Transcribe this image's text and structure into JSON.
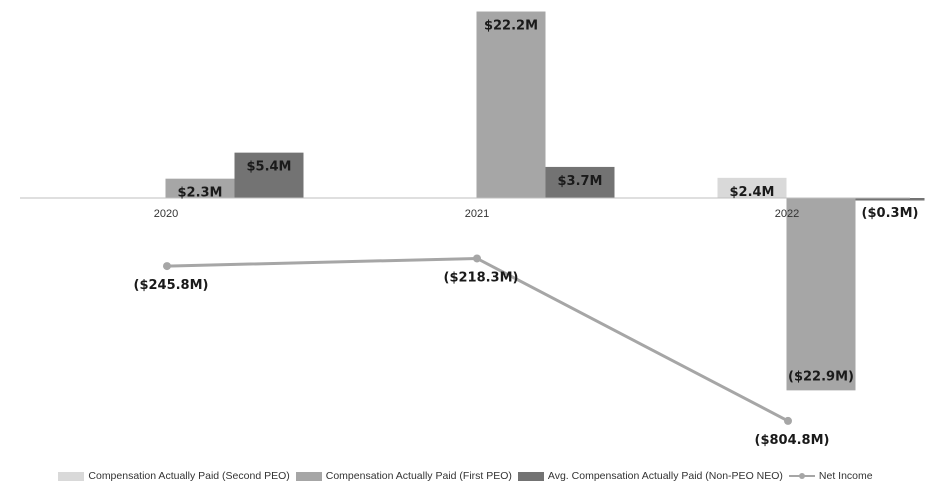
{
  "chart_data": {
    "type": "bar",
    "categories": [
      "2020",
      "2021",
      "2022"
    ],
    "series": [
      {
        "name": "Compensation Actually Paid (Second PEO)",
        "color": "#d9d9d9",
        "values": [
          null,
          null,
          2.4
        ],
        "labels": [
          "",
          "",
          "$2.4M"
        ]
      },
      {
        "name": "Compensation Actually Paid (First PEO)",
        "color": "#a6a6a6",
        "values": [
          2.3,
          22.2,
          -22.9
        ],
        "labels": [
          "$2.3M",
          "$22.2M",
          "($22.9M)"
        ]
      },
      {
        "name": "Avg. Compensation Actually Paid (Non-PEO NEO)",
        "color": "#737373",
        "values": [
          5.4,
          3.7,
          -0.3
        ],
        "labels": [
          "$5.4M",
          "$3.7M",
          "($0.3M)"
        ]
      }
    ],
    "line_series": {
      "name": "Net Income",
      "color": "#a6a6a6",
      "values": [
        -245.8,
        -218.3,
        -804.8
      ],
      "labels": [
        "($245.8M)",
        "($218.3M)",
        "($804.8M)"
      ]
    },
    "legend_position": "bottom"
  }
}
